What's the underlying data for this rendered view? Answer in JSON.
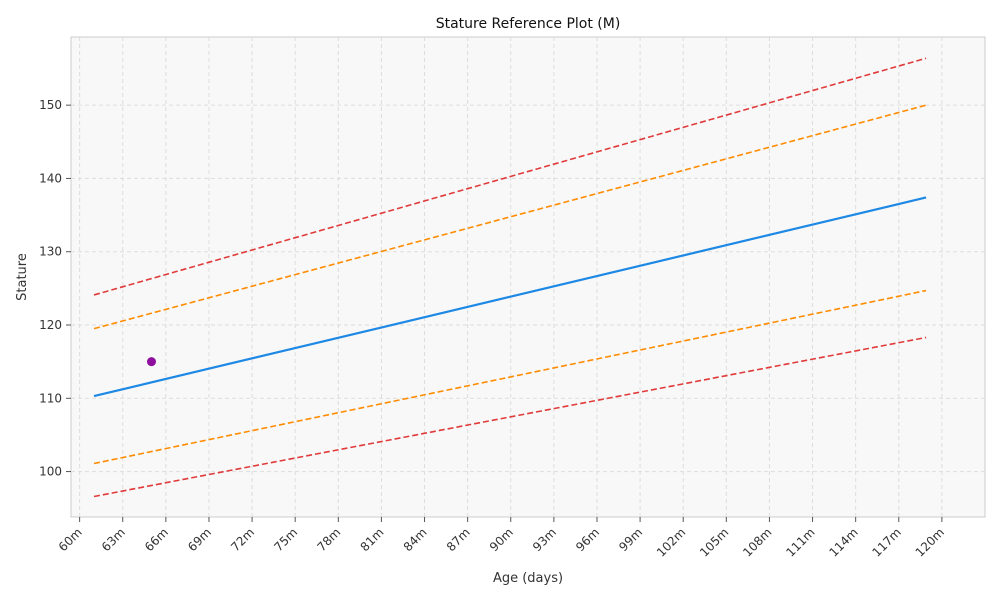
{
  "chart_data": {
    "type": "line",
    "title": "Stature Reference Plot (M)",
    "xlabel": "Age (days)",
    "ylabel": "Stature",
    "x_unit": "months",
    "xlim": [
      59.4,
      123.0
    ],
    "ylim": [
      93.8,
      159.3
    ],
    "x_ticks": [
      60,
      63,
      66,
      69,
      72,
      75,
      78,
      81,
      84,
      87,
      90,
      93,
      96,
      99,
      102,
      105,
      108,
      111,
      114,
      117,
      120
    ],
    "x_tick_labels": [
      "60m",
      "63m",
      "66m",
      "69m",
      "72m",
      "75m",
      "78m",
      "81m",
      "84m",
      "87m",
      "90m",
      "93m",
      "96m",
      "99m",
      "102m",
      "105m",
      "108m",
      "111m",
      "114m",
      "117m",
      "120m"
    ],
    "y_ticks": [
      100,
      110,
      120,
      130,
      140,
      150
    ],
    "y_tick_labels": [
      "100",
      "110",
      "120",
      "130",
      "140",
      "150"
    ],
    "grid": true,
    "legend": "none",
    "series": [
      {
        "style": "dashed",
        "color": "#e03a3a",
        "x": [
          61,
          118.9
        ],
        "y": [
          124.1,
          156.4
        ]
      },
      {
        "style": "dashed",
        "color": "#ff8c00",
        "x": [
          61,
          118.9
        ],
        "y": [
          119.5,
          150.0
        ]
      },
      {
        "style": "solid",
        "color": "#1e88e5",
        "x": [
          61,
          118.9
        ],
        "y": [
          110.3,
          137.4
        ]
      },
      {
        "style": "dashed",
        "color": "#ff8c00",
        "x": [
          61,
          118.9
        ],
        "y": [
          101.1,
          124.7
        ]
      },
      {
        "style": "dashed",
        "color": "#e03a3a",
        "x": [
          61,
          118.9
        ],
        "y": [
          96.6,
          118.3
        ]
      }
    ],
    "points": [
      {
        "x": 65,
        "y": 115.0,
        "color": "#8e0e9e"
      }
    ]
  }
}
